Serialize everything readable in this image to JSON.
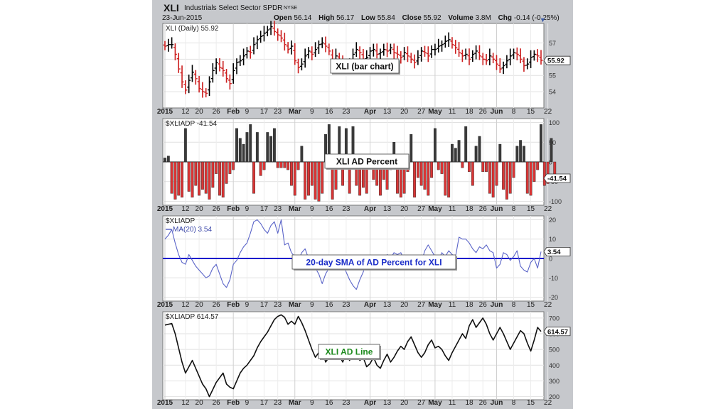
{
  "header": {
    "symbol": "XLI",
    "name": "Industrials Select Sector SPDR",
    "exchange": "NYSE",
    "date": "23-Jun-2015",
    "quote": [
      {
        "label": "Open",
        "value": "56.14"
      },
      {
        "label": "High",
        "value": "56.17"
      },
      {
        "label": "Low",
        "value": "55.84"
      },
      {
        "label": "Close",
        "value": "55.92"
      },
      {
        "label": "Volume",
        "value": "3.8M"
      },
      {
        "label": "Chg",
        "value": "-0.14 (-0.25%)"
      }
    ]
  },
  "colors": {
    "up": "#000000",
    "down": "#cc1f1f",
    "ad_up": "#3a3a3a",
    "ad_down": "#d93535",
    "sma": "#5a64c8",
    "zero_line": "#0000cc",
    "ad_line": "#111111"
  },
  "x_axis": {
    "labels": [
      {
        "i": 0,
        "t": "2015",
        "bold": true
      },
      {
        "i": 6,
        "t": "12"
      },
      {
        "i": 10,
        "t": "20"
      },
      {
        "i": 15,
        "t": "26"
      },
      {
        "i": 20,
        "t": "Feb",
        "bold": true
      },
      {
        "i": 24,
        "t": "9"
      },
      {
        "i": 29,
        "t": "17"
      },
      {
        "i": 33,
        "t": "23"
      },
      {
        "i": 38,
        "t": "Mar",
        "bold": true
      },
      {
        "i": 43,
        "t": "9"
      },
      {
        "i": 48,
        "t": "16"
      },
      {
        "i": 53,
        "t": "23"
      },
      {
        "i": 60,
        "t": "Apr",
        "bold": true
      },
      {
        "i": 65,
        "t": "13"
      },
      {
        "i": 70,
        "t": "20"
      },
      {
        "i": 75,
        "t": "27"
      },
      {
        "i": 79,
        "t": "May",
        "bold": true
      },
      {
        "i": 84,
        "t": "11"
      },
      {
        "i": 89,
        "t": "18"
      },
      {
        "i": 93,
        "t": "26"
      },
      {
        "i": 97,
        "t": "Jun",
        "bold": true
      },
      {
        "i": 102,
        "t": "8"
      },
      {
        "i": 107,
        "t": "15"
      },
      {
        "i": 112,
        "t": "22"
      }
    ]
  },
  "chart_data": [
    {
      "type": "ohlc",
      "title": "XLI (Daily) 55.92",
      "annotation": "XLI (bar chart)",
      "last_value": "55.92",
      "ylim": [
        53,
        58.2
      ],
      "yticks": [
        54,
        55,
        56,
        57
      ],
      "close": [
        56.8,
        56.9,
        56.9,
        56.3,
        55.4,
        54.6,
        54.1,
        54.7,
        55.2,
        54.8,
        54.2,
        54.0,
        53.9,
        54.6,
        55.3,
        55.8,
        55.5,
        55.3,
        54.8,
        54.5,
        55.3,
        55.8,
        55.9,
        56.2,
        56.5,
        56.4,
        56.9,
        57.2,
        57.4,
        57.6,
        57.8,
        58.0,
        57.7,
        57.5,
        57.3,
        56.9,
        56.6,
        56.8,
        55.9,
        55.5,
        55.7,
        56.2,
        56.5,
        56.3,
        56.6,
        56.9,
        57.0,
        56.8,
        56.5,
        55.7,
        56.2,
        56.0,
        55.6,
        55.5,
        55.8,
        56.3,
        56.6,
        56.4,
        56.0,
        56.1,
        56.5,
        56.6,
        56.3,
        56.4,
        56.6,
        56.5,
        56.7,
        56.4,
        56.3,
        56.1,
        56.4,
        56.2,
        56.0,
        55.8,
        56.1,
        56.5,
        56.4,
        56.2,
        56.6,
        56.6,
        56.8,
        56.9,
        57.1,
        57.2,
        56.9,
        56.7,
        56.4,
        56.2,
        56.3,
        56.0,
        56.3,
        56.5,
        56.2,
        56.0,
        55.9,
        56.2,
        56.0,
        55.7,
        55.4,
        55.6,
        55.9,
        56.2,
        56.4,
        56.3,
        56.0,
        55.6,
        55.7,
        56.1,
        56.3,
        56.2,
        55.92
      ],
      "up": [
        false,
        true,
        true,
        false,
        false,
        false,
        false,
        true,
        true,
        false,
        false,
        false,
        false,
        true,
        true,
        true,
        false,
        false,
        false,
        false,
        true,
        true,
        true,
        true,
        true,
        false,
        true,
        true,
        true,
        true,
        true,
        true,
        false,
        false,
        false,
        false,
        false,
        true,
        false,
        false,
        true,
        true,
        true,
        false,
        true,
        true,
        true,
        false,
        false,
        false,
        true,
        false,
        false,
        false,
        true,
        true,
        true,
        false,
        false,
        true,
        true,
        true,
        false,
        true,
        true,
        false,
        true,
        false,
        false,
        false,
        true,
        false,
        false,
        false,
        true,
        true,
        false,
        false,
        true,
        true,
        true,
        true,
        true,
        true,
        false,
        false,
        false,
        false,
        true,
        false,
        true,
        true,
        false,
        false,
        false,
        true,
        false,
        false,
        false,
        true,
        true,
        true,
        true,
        false,
        false,
        false,
        true,
        true,
        true,
        false,
        false
      ]
    },
    {
      "type": "bar",
      "title": "$XLIADP -41.54",
      "annotation": "XLI AD Percent",
      "last_value": "-41.54",
      "ylim": [
        -110,
        110
      ],
      "yticks": [
        -100,
        -50,
        0,
        50,
        100
      ],
      "values": [
        10,
        15,
        -80,
        -95,
        -85,
        -90,
        85,
        -75,
        -90,
        -60,
        -85,
        -70,
        -80,
        -95,
        -65,
        -30,
        -85,
        -90,
        -55,
        -30,
        -20,
        85,
        60,
        45,
        75,
        95,
        -80,
        75,
        -35,
        -20,
        75,
        65,
        85,
        -15,
        -15,
        -15,
        -20,
        -60,
        -85,
        -20,
        40,
        -95,
        -85,
        -60,
        -95,
        -100,
        -80,
        70,
        95,
        -95,
        -70,
        90,
        -60,
        85,
        -80,
        90,
        -60,
        -85,
        -65,
        -80,
        -15,
        -45,
        -60,
        -85,
        -45,
        -70,
        -20,
        50,
        -80,
        -90,
        -80,
        -25,
        70,
        -90,
        -40,
        -60,
        -70,
        -85,
        -40,
        85,
        -20,
        -30,
        -85,
        -90,
        45,
        35,
        55,
        -15,
        90,
        -25,
        -60,
        40,
        65,
        -25,
        -25,
        -80,
        -90,
        -60,
        45,
        -70,
        -95,
        -80,
        -40,
        40,
        55,
        40,
        -80,
        -85,
        -50,
        -20,
        95,
        -60,
        -55,
        60,
        -41.54
      ]
    },
    {
      "type": "line",
      "title": "$XLIADP",
      "series": [
        {
          "name": "MA(20) 3.54"
        }
      ],
      "annotation": "20-day SMA of AD Percent for XLI",
      "last_value": "3.54",
      "ylim": [
        -22,
        22
      ],
      "yticks": [
        -20,
        -10,
        0,
        10,
        20
      ],
      "values": [
        10,
        12,
        15,
        8,
        2,
        -2,
        -3,
        2,
        -1,
        -4,
        -6,
        -8,
        -10,
        -9,
        -5,
        -3,
        -8,
        -13,
        -15,
        -11,
        -3,
        -1,
        3,
        6,
        8,
        13,
        19,
        20,
        18,
        15,
        13,
        17,
        19,
        13,
        20,
        7,
        8,
        3,
        1,
        -1,
        3,
        5,
        0,
        -2,
        -5,
        -8,
        -13,
        -8,
        -5,
        -3,
        -1,
        0,
        -2,
        -7,
        -11,
        -14,
        -16,
        -11,
        -7,
        -2,
        0,
        -3,
        -2,
        1,
        -1,
        2,
        0,
        3,
        2,
        3,
        -1,
        -3,
        -5,
        -4,
        -2,
        -2,
        4,
        7,
        4,
        1,
        -1,
        3,
        1,
        4,
        2,
        1,
        11,
        10,
        10,
        8,
        5,
        3,
        6,
        5,
        7,
        4,
        3,
        -5,
        -3,
        3,
        2,
        -1,
        1,
        4,
        -4,
        -6,
        -7,
        -2,
        0,
        -5,
        3.54
      ]
    },
    {
      "type": "line",
      "title": "$XLIADP 614.57",
      "annotation": "XLI AD Line",
      "last_value": "614.57",
      "ylim": [
        180,
        740
      ],
      "yticks": [
        200,
        300,
        400,
        500,
        600,
        700
      ],
      "values": [
        655,
        660,
        665,
        600,
        510,
        420,
        350,
        390,
        430,
        380,
        330,
        280,
        250,
        200,
        245,
        290,
        320,
        350,
        280,
        260,
        250,
        300,
        350,
        380,
        400,
        430,
        460,
        510,
        550,
        580,
        610,
        650,
        690,
        710,
        720,
        705,
        660,
        680,
        660,
        710,
        670,
        620,
        560,
        500,
        450,
        480,
        500,
        420,
        450,
        500,
        440,
        460,
        420,
        480,
        430,
        500,
        520,
        430,
        450,
        390,
        410,
        450,
        400,
        380,
        430,
        470,
        420,
        450,
        490,
        520,
        500,
        550,
        580,
        530,
        480,
        450,
        480,
        530,
        560,
        510,
        520,
        500,
        460,
        430,
        480,
        520,
        560,
        600,
        570,
        650,
        690,
        640,
        670,
        700,
        660,
        600,
        560,
        600,
        640,
        600,
        550,
        500,
        540,
        580,
        620,
        600,
        540,
        490,
        560,
        640,
        614.57
      ]
    }
  ]
}
